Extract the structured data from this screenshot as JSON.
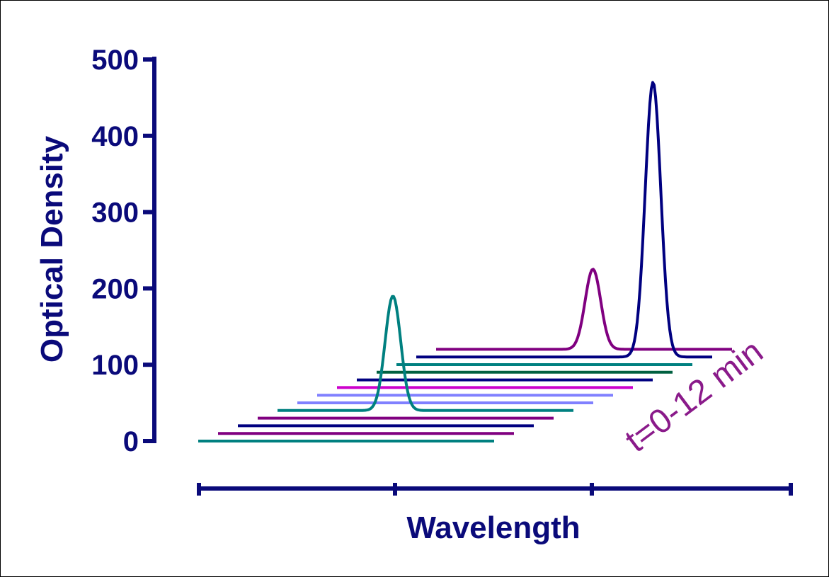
{
  "colors": {
    "axis": "#0a0a7a",
    "annotation": "#8a1a8a"
  },
  "chart_data": {
    "type": "line",
    "subtype": "3d-waterfall",
    "xlabel": "Wavelength",
    "ylabel": "Optical Density",
    "ylim": [
      0,
      500
    ],
    "y_ticks": [
      "0",
      "100",
      "200",
      "300",
      "400",
      "500"
    ],
    "x_ticks_labeled": false,
    "grid": false,
    "annotation": "t=0-12 min",
    "series": [
      {
        "color": "#008080",
        "peak": false,
        "peak_od": 0
      },
      {
        "color": "#800080",
        "peak": false,
        "peak_od": 0
      },
      {
        "color": "#000080",
        "peak": false,
        "peak_od": 0
      },
      {
        "color": "#800080",
        "peak": false,
        "peak_od": 0
      },
      {
        "color": "#008080",
        "peak": true,
        "peak_od": 150
      },
      {
        "color": "#8080ff",
        "peak": false,
        "peak_od": 0
      },
      {
        "color": "#8080ff",
        "peak": false,
        "peak_od": 0
      },
      {
        "color": "#cc00cc",
        "peak": false,
        "peak_od": 0
      },
      {
        "color": "#000080",
        "peak": false,
        "peak_od": 0
      },
      {
        "color": "#006040",
        "peak": false,
        "peak_od": 0
      },
      {
        "color": "#008080",
        "peak": false,
        "peak_od": 0
      },
      {
        "color": "#000080",
        "peak": true,
        "peak_od": 360
      },
      {
        "color": "#800080",
        "peak": true,
        "peak_od": 105
      }
    ]
  }
}
